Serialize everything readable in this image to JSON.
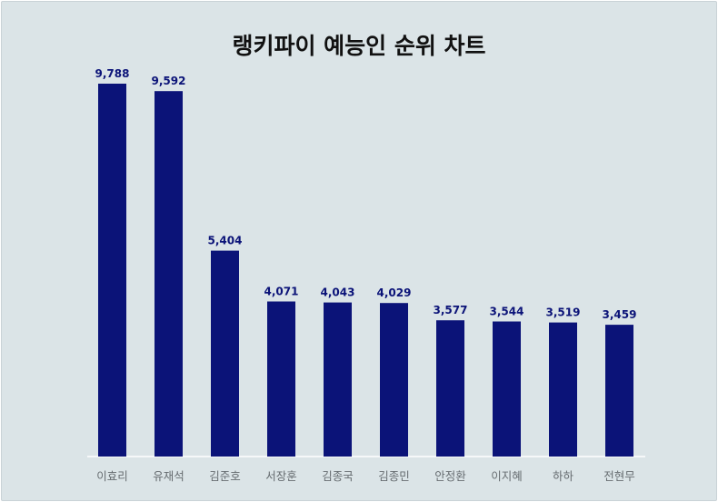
{
  "chart_data": {
    "type": "bar",
    "title": "랭키파이 예능인 순위 차트",
    "xlabel": "",
    "ylabel": "",
    "categories": [
      "이효리",
      "유재석",
      "김준호",
      "서장훈",
      "김종국",
      "김종민",
      "안정환",
      "이지혜",
      "하하",
      "전현무"
    ],
    "values": [
      9788,
      9592,
      5404,
      4071,
      4043,
      4029,
      3577,
      3544,
      3519,
      3459
    ],
    "value_labels": [
      "9,788",
      "9,592",
      "5,404",
      "4,071",
      "4,043",
      "4,029",
      "3,577",
      "3,544",
      "3,519",
      "3,459"
    ],
    "ylim": [
      0,
      9788
    ],
    "grid": false,
    "legend": "none",
    "bar_color": "#0b1378",
    "label_color": "#0b1378",
    "background_color": "#dbe4e7"
  }
}
